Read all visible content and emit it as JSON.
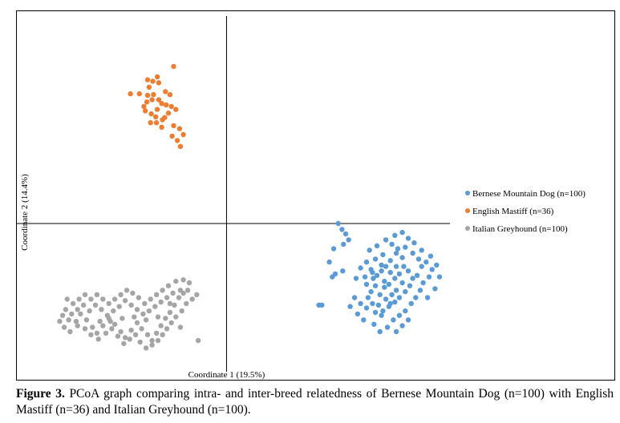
{
  "caption": {
    "label": "Figure 3.",
    "text": "PCoA graph comparing intra- and inter-breed relatedness of Bernese Mountain Dog (n=100) with English Mastiff (n=36) and Italian Greyhound (n=100)."
  },
  "chart_data": {
    "type": "scatter",
    "title": "",
    "xlabel": "Coordinate 1 (19.5%)",
    "ylabel": "Coordinate 2 (14.4%)",
    "xlim": [
      -0.26,
      0.3
    ],
    "ylim": [
      -0.2,
      0.28
    ],
    "grid": false,
    "legend_position": "right",
    "series": [
      {
        "name": "Bernese Mountain Dog (n=100)",
        "color": "#5b9bd5",
        "points": [
          [
            0.15,
            0.0
          ],
          [
            0.155,
            -0.008
          ],
          [
            0.16,
            -0.014
          ],
          [
            0.164,
            -0.022
          ],
          [
            0.157,
            -0.028
          ],
          [
            0.144,
            -0.034
          ],
          [
            0.138,
            -0.052
          ],
          [
            0.146,
            -0.068
          ],
          [
            0.142,
            -0.072
          ],
          [
            0.156,
            -0.064
          ],
          [
            0.18,
            -0.06
          ],
          [
            0.188,
            -0.052
          ],
          [
            0.194,
            -0.062
          ],
          [
            0.186,
            -0.072
          ],
          [
            0.197,
            -0.074
          ],
          [
            0.202,
            -0.07
          ],
          [
            0.208,
            -0.064
          ],
          [
            0.214,
            -0.058
          ],
          [
            0.22,
            -0.066
          ],
          [
            0.212,
            -0.078
          ],
          [
            0.218,
            -0.082
          ],
          [
            0.226,
            -0.074
          ],
          [
            0.232,
            -0.068
          ],
          [
            0.238,
            -0.058
          ],
          [
            0.228,
            -0.09
          ],
          [
            0.222,
            -0.096
          ],
          [
            0.214,
            -0.102
          ],
          [
            0.206,
            -0.096
          ],
          [
            0.2,
            -0.084
          ],
          [
            0.194,
            -0.092
          ],
          [
            0.19,
            -0.1
          ],
          [
            0.196,
            -0.108
          ],
          [
            0.204,
            -0.11
          ],
          [
            0.21,
            -0.118
          ],
          [
            0.218,
            -0.112
          ],
          [
            0.226,
            -0.106
          ],
          [
            0.232,
            -0.1
          ],
          [
            0.24,
            -0.092
          ],
          [
            0.246,
            -0.084
          ],
          [
            0.25,
            -0.074
          ],
          [
            0.244,
            -0.064
          ],
          [
            0.236,
            -0.046
          ],
          [
            0.228,
            -0.04
          ],
          [
            0.22,
            -0.05
          ],
          [
            0.21,
            -0.042
          ],
          [
            0.2,
            -0.048
          ],
          [
            0.192,
            -0.036
          ],
          [
            0.202,
            -0.03
          ],
          [
            0.214,
            -0.022
          ],
          [
            0.222,
            -0.028
          ],
          [
            0.23,
            -0.034
          ],
          [
            0.24,
            -0.032
          ],
          [
            0.25,
            -0.04
          ],
          [
            0.258,
            -0.048
          ],
          [
            0.262,
            -0.058
          ],
          [
            0.256,
            -0.07
          ],
          [
            0.264,
            -0.08
          ],
          [
            0.272,
            -0.072
          ],
          [
            0.276,
            -0.062
          ],
          [
            0.268,
            -0.052
          ],
          [
            0.26,
            -0.09
          ],
          [
            0.254,
            -0.1
          ],
          [
            0.248,
            -0.108
          ],
          [
            0.24,
            -0.118
          ],
          [
            0.232,
            -0.124
          ],
          [
            0.224,
            -0.13
          ],
          [
            0.216,
            -0.14
          ],
          [
            0.208,
            -0.124
          ],
          [
            0.2,
            -0.12
          ],
          [
            0.188,
            -0.114
          ],
          [
            0.18,
            -0.108
          ],
          [
            0.172,
            -0.1
          ],
          [
            0.166,
            -0.112
          ],
          [
            0.176,
            -0.122
          ],
          [
            0.184,
            -0.13
          ],
          [
            0.198,
            -0.136
          ],
          [
            0.206,
            -0.146
          ],
          [
            0.228,
            -0.146
          ],
          [
            0.236,
            -0.138
          ],
          [
            0.244,
            -0.13
          ],
          [
            0.27,
            -0.1
          ],
          [
            0.28,
            -0.088
          ],
          [
            0.286,
            -0.072
          ],
          [
            0.282,
            -0.056
          ],
          [
            0.274,
            -0.044
          ],
          [
            0.262,
            -0.036
          ],
          [
            0.252,
            -0.026
          ],
          [
            0.244,
            -0.02
          ],
          [
            0.236,
            -0.012
          ],
          [
            0.226,
            -0.016
          ],
          [
            0.188,
            -0.082
          ],
          [
            0.196,
            -0.066
          ],
          [
            0.212,
            -0.086
          ],
          [
            0.22,
            -0.108
          ],
          [
            0.236,
            -0.08
          ],
          [
            0.228,
            -0.058
          ],
          [
            0.208,
            -0.056
          ],
          [
            0.174,
            -0.074
          ],
          [
            0.128,
            -0.11
          ],
          [
            0.124,
            -0.11
          ]
        ]
      },
      {
        "name": "English Mastiff (n=36)",
        "color": "#ed7d31",
        "points": [
          [
            -0.071,
            0.212
          ],
          [
            -0.093,
            0.198
          ],
          [
            -0.091,
            0.19
          ],
          [
            -0.106,
            0.194
          ],
          [
            -0.099,
            0.192
          ],
          [
            -0.117,
            0.175
          ],
          [
            -0.106,
            0.173
          ],
          [
            -0.098,
            0.174
          ],
          [
            -0.082,
            0.178
          ],
          [
            -0.076,
            0.174
          ],
          [
            -0.091,
            0.167
          ],
          [
            -0.1,
            0.167
          ],
          [
            -0.087,
            0.162
          ],
          [
            -0.081,
            0.16
          ],
          [
            -0.093,
            0.154
          ],
          [
            -0.107,
            0.164
          ],
          [
            -0.074,
            0.158
          ],
          [
            -0.068,
            0.154
          ],
          [
            -0.078,
            0.149
          ],
          [
            -0.083,
            0.143
          ],
          [
            -0.086,
            0.14
          ],
          [
            -0.095,
            0.144
          ],
          [
            -0.101,
            0.148
          ],
          [
            -0.109,
            0.152
          ],
          [
            -0.102,
            0.136
          ],
          [
            -0.087,
            0.13
          ],
          [
            -0.071,
            0.132
          ],
          [
            -0.063,
            0.128
          ],
          [
            -0.073,
            0.118
          ],
          [
            -0.066,
            0.112
          ],
          [
            -0.058,
            0.12
          ],
          [
            -0.062,
            0.104
          ],
          [
            -0.129,
            0.175
          ],
          [
            -0.111,
            0.158
          ],
          [
            -0.094,
            0.136
          ],
          [
            -0.104,
            0.184
          ]
        ]
      },
      {
        "name": "Italian Greyhound (n=100)",
        "color": "#a5a5a5",
        "points": [
          [
            -0.224,
            -0.132
          ],
          [
            -0.218,
            -0.14
          ],
          [
            -0.21,
            -0.146
          ],
          [
            -0.202,
            -0.132
          ],
          [
            -0.196,
            -0.122
          ],
          [
            -0.188,
            -0.13
          ],
          [
            -0.18,
            -0.14
          ],
          [
            -0.174,
            -0.148
          ],
          [
            -0.166,
            -0.138
          ],
          [
            -0.158,
            -0.128
          ],
          [
            -0.15,
            -0.136
          ],
          [
            -0.142,
            -0.146
          ],
          [
            -0.136,
            -0.154
          ],
          [
            -0.128,
            -0.144
          ],
          [
            -0.12,
            -0.134
          ],
          [
            -0.114,
            -0.142
          ],
          [
            -0.106,
            -0.15
          ],
          [
            -0.1,
            -0.158
          ],
          [
            -0.094,
            -0.148
          ],
          [
            -0.088,
            -0.138
          ],
          [
            -0.082,
            -0.128
          ],
          [
            -0.076,
            -0.12
          ],
          [
            -0.07,
            -0.11
          ],
          [
            -0.064,
            -0.1
          ],
          [
            -0.058,
            -0.094
          ],
          [
            -0.052,
            -0.09
          ],
          [
            -0.062,
            -0.09
          ],
          [
            -0.072,
            -0.094
          ],
          [
            -0.08,
            -0.1
          ],
          [
            -0.088,
            -0.106
          ],
          [
            -0.096,
            -0.112
          ],
          [
            -0.104,
            -0.118
          ],
          [
            -0.112,
            -0.122
          ],
          [
            -0.12,
            -0.116
          ],
          [
            -0.128,
            -0.11
          ],
          [
            -0.136,
            -0.104
          ],
          [
            -0.144,
            -0.112
          ],
          [
            -0.152,
            -0.118
          ],
          [
            -0.16,
            -0.124
          ],
          [
            -0.168,
            -0.116
          ],
          [
            -0.176,
            -0.11
          ],
          [
            -0.184,
            -0.118
          ],
          [
            -0.192,
            -0.11
          ],
          [
            -0.2,
            -0.116
          ],
          [
            -0.208,
            -0.122
          ],
          [
            -0.216,
            -0.116
          ],
          [
            -0.22,
            -0.124
          ],
          [
            -0.212,
            -0.13
          ],
          [
            -0.2,
            -0.138
          ],
          [
            -0.19,
            -0.142
          ],
          [
            -0.182,
            -0.15
          ],
          [
            -0.172,
            -0.156
          ],
          [
            -0.162,
            -0.148
          ],
          [
            -0.154,
            -0.142
          ],
          [
            -0.146,
            -0.152
          ],
          [
            -0.138,
            -0.162
          ],
          [
            -0.13,
            -0.156
          ],
          [
            -0.122,
            -0.15
          ],
          [
            -0.116,
            -0.16
          ],
          [
            -0.108,
            -0.168
          ],
          [
            -0.1,
            -0.164
          ],
          [
            -0.092,
            -0.158
          ],
          [
            -0.086,
            -0.15
          ],
          [
            -0.08,
            -0.142
          ],
          [
            -0.074,
            -0.134
          ],
          [
            -0.068,
            -0.126
          ],
          [
            -0.06,
            -0.118
          ],
          [
            -0.054,
            -0.108
          ],
          [
            -0.046,
            -0.102
          ],
          [
            -0.04,
            -0.096
          ],
          [
            -0.05,
            -0.08
          ],
          [
            -0.058,
            -0.076
          ],
          [
            -0.068,
            -0.078
          ],
          [
            -0.078,
            -0.084
          ],
          [
            -0.086,
            -0.09
          ],
          [
            -0.094,
            -0.096
          ],
          [
            -0.102,
            -0.102
          ],
          [
            -0.11,
            -0.108
          ],
          [
            -0.118,
            -0.1
          ],
          [
            -0.126,
            -0.094
          ],
          [
            -0.134,
            -0.09
          ],
          [
            -0.142,
            -0.096
          ],
          [
            -0.15,
            -0.102
          ],
          [
            -0.158,
            -0.108
          ],
          [
            -0.166,
            -0.102
          ],
          [
            -0.174,
            -0.096
          ],
          [
            -0.182,
            -0.102
          ],
          [
            -0.19,
            -0.096
          ],
          [
            -0.198,
            -0.102
          ],
          [
            -0.206,
            -0.108
          ],
          [
            -0.214,
            -0.102
          ],
          [
            -0.17,
            -0.132
          ],
          [
            -0.156,
            -0.132
          ],
          [
            -0.14,
            -0.128
          ],
          [
            -0.124,
            -0.126
          ],
          [
            -0.108,
            -0.13
          ],
          [
            -0.092,
            -0.126
          ],
          [
            -0.076,
            -0.108
          ],
          [
            -0.062,
            -0.14
          ],
          [
            -0.038,
            -0.158
          ]
        ]
      }
    ]
  }
}
